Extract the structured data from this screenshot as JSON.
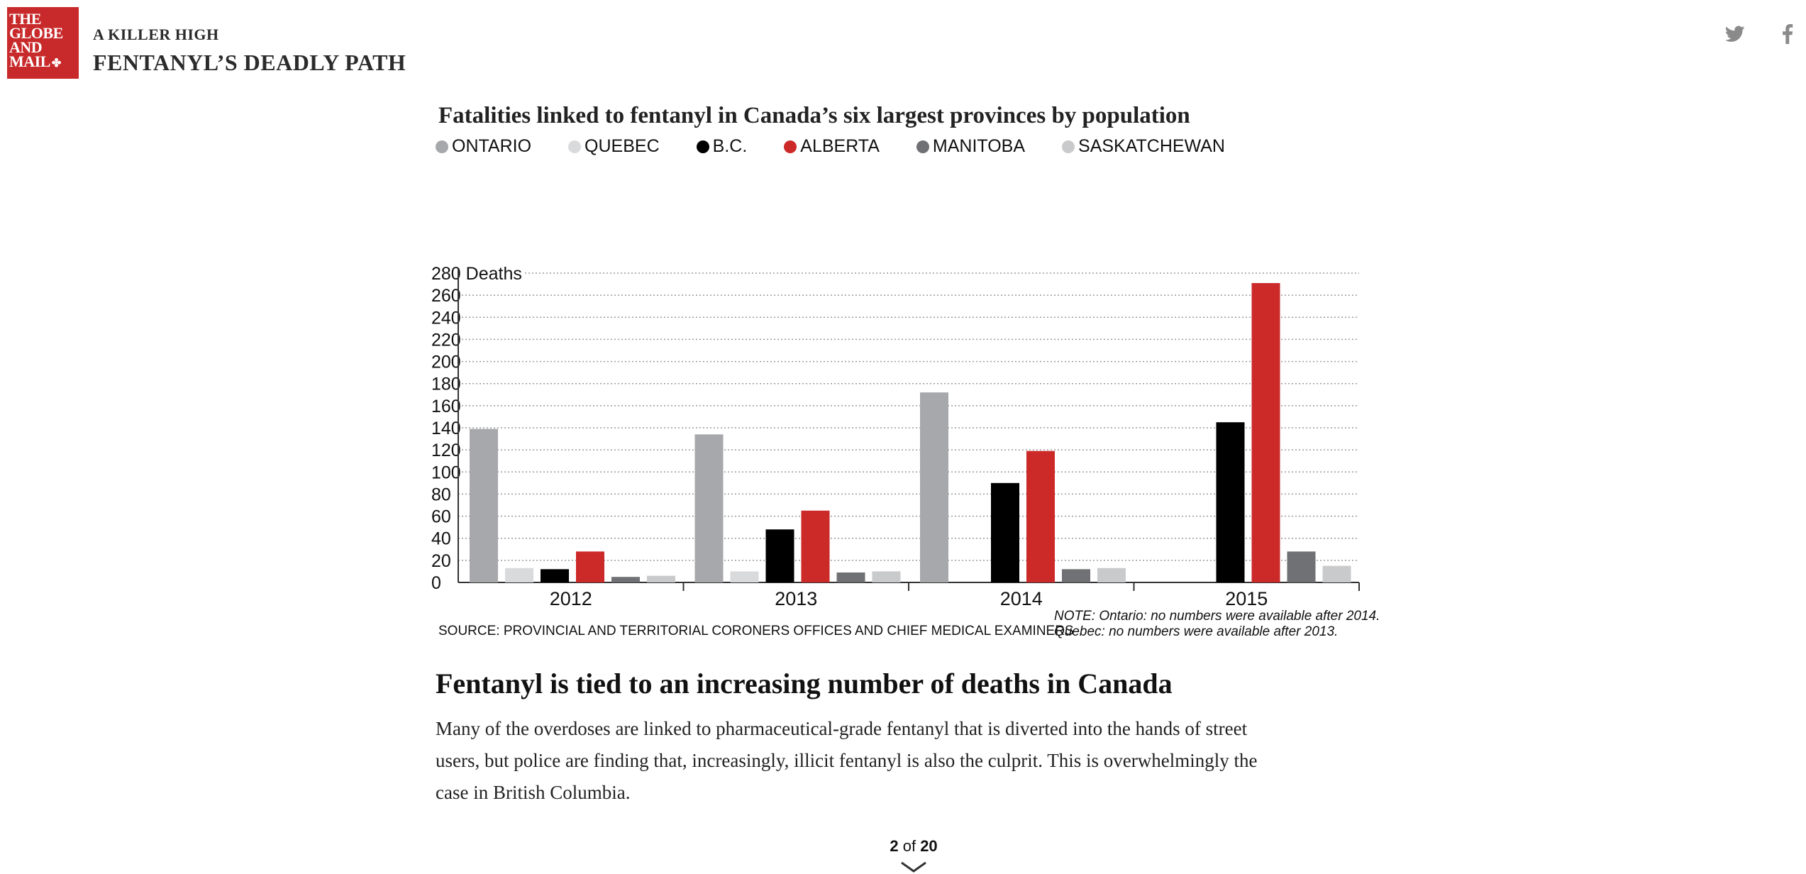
{
  "header": {
    "logo_lines": [
      "THE",
      "GLOBE",
      "AND",
      "MAIL"
    ],
    "kicker": "A KILLER HIGH",
    "series_title": "FENTANYL’S DEADLY PATH"
  },
  "social": {
    "icons": [
      "twitter-icon",
      "facebook-icon"
    ]
  },
  "chart_data": {
    "type": "bar",
    "title": "Fatalities linked to fentanyl in Canada’s six largest provinces by population",
    "ylabel": "Deaths",
    "ylim": [
      0,
      280
    ],
    "yticks": [
      0,
      20,
      40,
      60,
      80,
      100,
      120,
      140,
      160,
      180,
      200,
      220,
      240,
      260,
      280
    ],
    "grid": true,
    "legend_position": "top-left",
    "categories": [
      "2012",
      "2013",
      "2014",
      "2015"
    ],
    "series": [
      {
        "name": "ONTARIO",
        "color": "#a7a8ab",
        "values": [
          139,
          134,
          172,
          null
        ]
      },
      {
        "name": "QUEBEC",
        "color": "#d9dadb",
        "values": [
          13,
          10,
          null,
          null
        ]
      },
      {
        "name": "B.C.",
        "color": "#000000",
        "values": [
          12,
          48,
          90,
          145
        ]
      },
      {
        "name": "ALBERTA",
        "color": "#cc2929",
        "values": [
          28,
          65,
          119,
          271
        ]
      },
      {
        "name": "MANITOBA",
        "color": "#707174",
        "values": [
          5,
          9,
          12,
          28
        ]
      },
      {
        "name": "SASKATCHEWAN",
        "color": "#c9cacb",
        "values": [
          6,
          10,
          13,
          15
        ]
      }
    ],
    "source": "SOURCE: PROVINCIAL AND TERRITORIAL CORONERS OFFICES AND CHIEF MEDICAL EXAMINERS",
    "note_lines": [
      "NOTE:  Ontario: no numbers were available after 2014.",
      "Quebec: no numbers were available after 2013."
    ]
  },
  "article": {
    "headline": "Fentanyl is tied to an increasing number of deaths in Canada",
    "body": "Many of the overdoses are linked to pharmaceutical-grade fentanyl that is diverted into the hands of street users, but police are finding that, increasingly, illicit fentanyl is also the culprit. This is overwhelmingly the case in British Columbia."
  },
  "pager": {
    "current": "2",
    "separator": "of",
    "total": "20"
  }
}
